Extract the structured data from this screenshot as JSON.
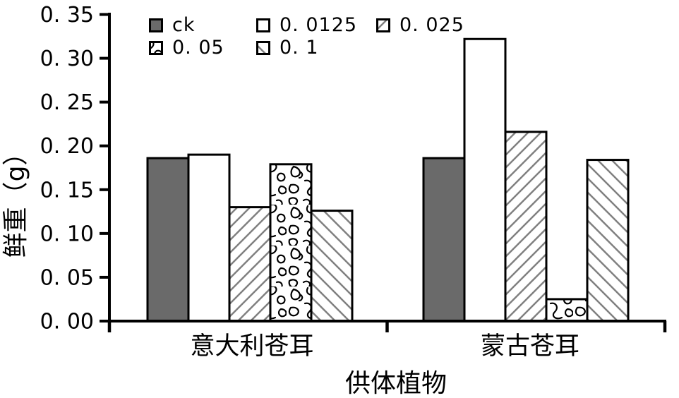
{
  "chart_data": {
    "type": "bar",
    "title": "",
    "xlabel": "供体植物",
    "ylabel": "鲜重（g）",
    "categories": [
      "意大利苍耳",
      "蒙古苍耳"
    ],
    "series": [
      {
        "name": "ck",
        "label": "ck",
        "pattern": "solid-gray",
        "values": [
          0.186,
          0.186
        ]
      },
      {
        "name": "0.0125",
        "label": "0. 0125",
        "pattern": "white",
        "values": [
          0.19,
          0.322
        ]
      },
      {
        "name": "0.025",
        "label": "0. 025",
        "pattern": "hatch-up",
        "values": [
          0.13,
          0.216
        ]
      },
      {
        "name": "0.05",
        "label": "0. 05",
        "pattern": "squiggle",
        "values": [
          0.179,
          0.025
        ]
      },
      {
        "name": "0.1",
        "label": "0. 1",
        "pattern": "hatch-down",
        "values": [
          0.126,
          0.184
        ]
      }
    ],
    "ylim": [
      0,
      0.35
    ],
    "ytick_step": 0.05,
    "ytick_labels": [
      "0. 00",
      "0. 05",
      "0. 10",
      "0. 15",
      "0. 20",
      "0. 25",
      "0. 30",
      "0. 35"
    ],
    "legend_position": "top-left-inside",
    "grid": false
  },
  "colors": {
    "background": "#ffffff",
    "bar_gray": "#6a6a6a",
    "hatch_line": "#808080",
    "outline": "#000000"
  }
}
